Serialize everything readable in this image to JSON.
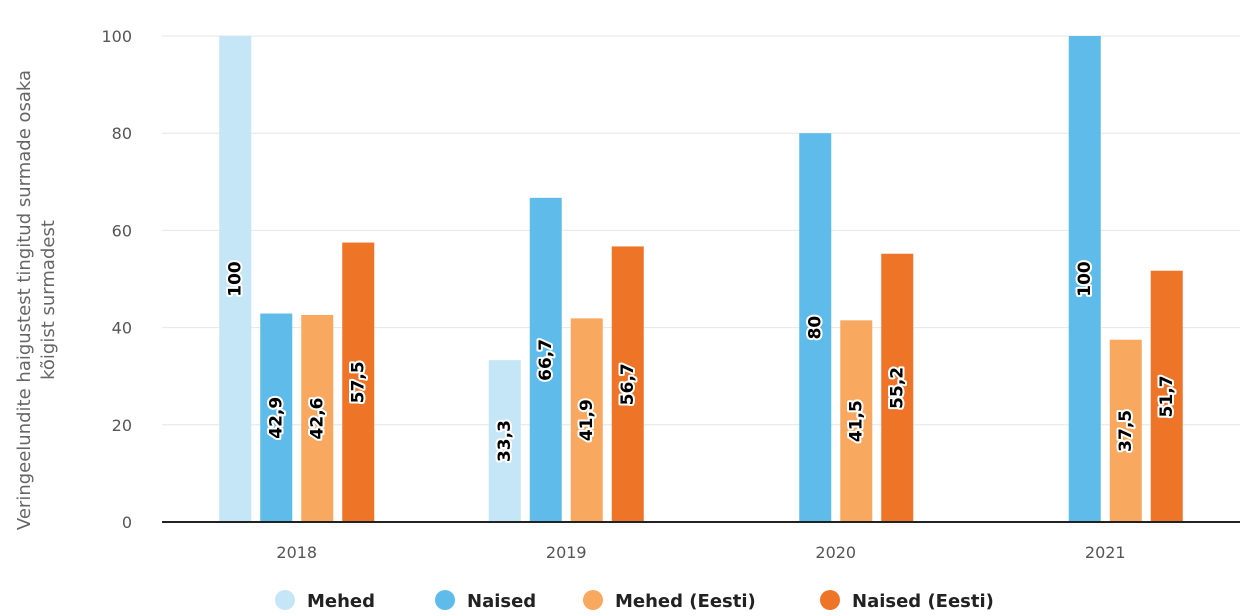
{
  "chart_data": {
    "type": "bar",
    "categories": [
      "2018",
      "2019",
      "2020",
      "2021"
    ],
    "series": [
      {
        "name": "Mehed",
        "color": "#c4e6f6",
        "values": [
          100,
          33.3,
          null,
          null
        ],
        "labels": [
          "100",
          "33,3",
          "",
          ""
        ]
      },
      {
        "name": "Naised",
        "color": "#5fbcea",
        "values": [
          42.9,
          66.7,
          80,
          100
        ],
        "labels": [
          "42,9",
          "66,7",
          "80",
          "100"
        ]
      },
      {
        "name": "Mehed (Eesti)",
        "color": "#f8a85f",
        "values": [
          42.6,
          41.9,
          41.5,
          37.5
        ],
        "labels": [
          "42,6",
          "41,9",
          "41,5",
          "37,5"
        ]
      },
      {
        "name": "Naised (Eesti)",
        "color": "#ee7428",
        "values": [
          57.5,
          56.7,
          55.2,
          51.7
        ],
        "labels": [
          "57,5",
          "56,7",
          "55,2",
          "51,7"
        ]
      }
    ],
    "ylabel": "Veringeelundite haigustest tingitud surmade osaka kõigist surmadest",
    "ylabel_lines": [
      "Veringeelundite haigustest tingitud surmade osaka",
      "kõigist surmadest"
    ],
    "yticks": [
      "0",
      "20",
      "40",
      "60",
      "80",
      "100"
    ],
    "ylim": [
      0,
      100
    ],
    "grid": true,
    "legend_position": "bottom",
    "legend": [
      "Mehed",
      "Naised",
      "Mehed (Eesti)",
      "Naised (Eesti)"
    ]
  }
}
